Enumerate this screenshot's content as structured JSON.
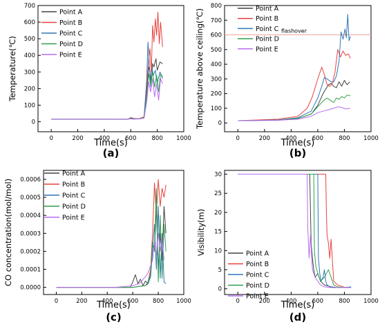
{
  "panels": [
    {
      "letter": "(a)",
      "chart_data": {
        "type": "line",
        "xlabel": "Time(s)",
        "ylabel": "Temperature(℃)",
        "xlim": [
          -100,
          1000
        ],
        "ylim": [
          -60,
          700
        ],
        "xticks": [
          0,
          200,
          400,
          600,
          800,
          1000
        ],
        "yticks": [
          0,
          100,
          200,
          300,
          400,
          500,
          600,
          700
        ],
        "legend_position": "top-left",
        "series": [
          {
            "name": "Point A",
            "color": "#404040",
            "x": [
              0,
              400,
              580,
              600,
              620,
              660,
              700,
              720,
              735,
              745,
              755,
              765,
              775,
              790,
              800,
              820,
              840
            ],
            "y": [
              15,
              15,
              16,
              25,
              20,
              18,
              28,
              180,
              330,
              300,
              240,
              350,
              330,
              380,
              310,
              360,
              350
            ]
          },
          {
            "name": "Point B",
            "color": "#e8413c",
            "x": [
              0,
              400,
              580,
              600,
              620,
              660,
              700,
              720,
              735,
              745,
              755,
              765,
              775,
              785,
              795,
              805,
              815,
              825,
              840
            ],
            "y": [
              15,
              15,
              16,
              24,
              19,
              18,
              30,
              200,
              380,
              440,
              300,
              580,
              480,
              620,
              520,
              660,
              470,
              600,
              450
            ]
          },
          {
            "name": "Point C",
            "color": "#2e75b6",
            "x": [
              0,
              400,
              580,
              600,
              620,
              660,
              700,
              720,
              730,
              740,
              750,
              760,
              770,
              785,
              800,
              820,
              840
            ],
            "y": [
              15,
              15,
              16,
              22,
              18,
              18,
              25,
              250,
              480,
              350,
              210,
              320,
              280,
              310,
              230,
              300,
              260
            ]
          },
          {
            "name": "Point D",
            "color": "#2ea04a",
            "x": [
              0,
              400,
              580,
              600,
              620,
              660,
              700,
              720,
              735,
              750,
              765,
              780,
              795,
              810,
              825,
              840
            ],
            "y": [
              15,
              15,
              16,
              20,
              17,
              17,
              24,
              150,
              290,
              220,
              300,
              210,
              280,
              180,
              290,
              270
            ]
          },
          {
            "name": "Point E",
            "color": "#b76cf0",
            "x": [
              0,
              400,
              580,
              600,
              620,
              660,
              700,
              720,
              735,
              750,
              765,
              780,
              795,
              810,
              825,
              840
            ],
            "y": [
              15,
              15,
              16,
              18,
              16,
              17,
              22,
              120,
              240,
              180,
              260,
              150,
              230,
              130,
              260,
              230
            ]
          }
        ]
      }
    },
    {
      "letter": "(b)",
      "annotation": "flashover",
      "chart_data": {
        "type": "line",
        "xlabel": "Time(s)",
        "ylabel": "Temperature above ceiling(℃)",
        "xlim": [
          -100,
          1000
        ],
        "ylim": [
          -60,
          800
        ],
        "xticks": [
          0,
          200,
          400,
          600,
          800,
          1000
        ],
        "yticks": [
          0,
          100,
          200,
          300,
          400,
          500,
          600,
          700,
          800
        ],
        "legend_position": "top-left",
        "reference_line": {
          "y": 600,
          "color": "#f2a3a0"
        },
        "series": [
          {
            "name": "Point A",
            "color": "#404040",
            "x": [
              0,
              300,
              450,
              550,
              600,
              640,
              680,
              700,
              720,
              740,
              760,
              780,
              800,
              820,
              840
            ],
            "y": [
              15,
              20,
              30,
              60,
              120,
              200,
              260,
              270,
              250,
              240,
              280,
              250,
              290,
              260,
              280
            ]
          },
          {
            "name": "Point B",
            "color": "#e8413c",
            "x": [
              0,
              300,
              450,
              520,
              560,
              600,
              630,
              650,
              670,
              690,
              710,
              730,
              750,
              770,
              790,
              810,
              830,
              845
            ],
            "y": [
              15,
              25,
              45,
              100,
              180,
              300,
              380,
              330,
              260,
              250,
              270,
              350,
              500,
              450,
              490,
              460,
              470,
              440
            ]
          },
          {
            "name": "Point C",
            "color": "#2e75b6",
            "x": [
              0,
              300,
              450,
              550,
              600,
              630,
              650,
              670,
              700,
              720,
              740,
              760,
              775,
              790,
              805,
              815,
              825,
              835,
              845
            ],
            "y": [
              15,
              20,
              35,
              80,
              170,
              250,
              310,
              300,
              280,
              280,
              320,
              420,
              620,
              570,
              640,
              580,
              740,
              560,
              590
            ]
          },
          {
            "name": "Point D",
            "color": "#2ea04a",
            "x": [
              0,
              300,
              450,
              550,
              600,
              640,
              670,
              700,
              720,
              740,
              760,
              780,
              800,
              820,
              845
            ],
            "y": [
              15,
              18,
              30,
              60,
              110,
              150,
              170,
              150,
              140,
              170,
              160,
              180,
              170,
              190,
              185
            ]
          },
          {
            "name": "Point E",
            "color": "#b76cf0",
            "x": [
              0,
              300,
              450,
              550,
              600,
              640,
              680,
              720,
              750,
              780,
              810,
              845
            ],
            "y": [
              15,
              18,
              25,
              45,
              70,
              80,
              90,
              100,
              110,
              105,
              95,
              100
            ]
          }
        ]
      }
    },
    {
      "letter": "(c)",
      "chart_data": {
        "type": "line",
        "xlabel": "Time(s)",
        "ylabel": "CO concentration(mol/mol)",
        "xlim": [
          -100,
          1000
        ],
        "ylim": [
          -4e-05,
          0.00065
        ],
        "xticks": [
          0,
          200,
          400,
          600,
          800,
          1000
        ],
        "yticks": [
          0,
          0.0001,
          0.0002,
          0.0003,
          0.0004,
          0.0005,
          0.0006
        ],
        "ytick_labels": [
          "0.0000",
          "0.0001",
          "0.0002",
          "0.0003",
          "0.0004",
          "0.0005",
          "0.0006"
        ],
        "legend_position": "top-left",
        "series": [
          {
            "name": "Point A",
            "color": "#404040",
            "x": [
              0,
              450,
              580,
              600,
              620,
              640,
              660,
              680,
              700,
              720,
              740,
              755,
              770,
              785,
              800,
              815,
              830,
              845,
              860
            ],
            "y": [
              0,
              0,
              0,
              3e-05,
              7e-05,
              2e-05,
              4.5e-05,
              1e-05,
              3.5e-05,
              2e-05,
              8e-05,
              0.00025,
              0.0002,
              0.00045,
              0.0001,
              0.0003,
              0.00015,
              0.00045,
              0.0003
            ]
          },
          {
            "name": "Point B",
            "color": "#e8413c",
            "x": [
              0,
              450,
              600,
              650,
              700,
              720,
              740,
              755,
              770,
              785,
              800,
              815,
              830,
              845,
              860
            ],
            "y": [
              0,
              0,
              0,
              5e-06,
              1e-05,
              3e-05,
              0.0001,
              0.0003,
              0.00058,
              0.0004,
              0.0006,
              0.00045,
              0.00055,
              0.0005,
              0.00057
            ]
          },
          {
            "name": "Point C",
            "color": "#2e75b6",
            "x": [
              0,
              450,
              600,
              650,
              700,
              720,
              740,
              755,
              770,
              785,
              800,
              815,
              830,
              845,
              860
            ],
            "y": [
              0,
              0,
              0,
              5e-06,
              1e-05,
              2e-05,
              6e-05,
              0.0002,
              0.00035,
              0.0001,
              0.00045,
              5e-05,
              0.0003,
              3e-05,
              2e-05
            ]
          },
          {
            "name": "Point D",
            "color": "#2ea04a",
            "x": [
              0,
              450,
              600,
              650,
              700,
              720,
              740,
              755,
              770,
              785,
              800,
              815,
              830,
              845,
              860
            ],
            "y": [
              0,
              0,
              0,
              5e-06,
              1e-05,
              3e-05,
              8e-05,
              0.00025,
              0.0002,
              0.00055,
              3e-05,
              0.0004,
              5e-05,
              0.00035,
              0.0002
            ]
          },
          {
            "name": "Point E",
            "color": "#b76cf0",
            "x": [
              0,
              450,
              500,
              550,
              600,
              650,
              700,
              720,
              740,
              755,
              770,
              785,
              800,
              815,
              830,
              845
            ],
            "y": [
              0,
              0,
              2e-06,
              5e-06,
              1e-05,
              2e-05,
              6e-05,
              8e-05,
              0.00012,
              0.00015,
              0.00025,
              0.00018,
              0.0003,
              0.0002,
              0.00028,
              0.00015
            ]
          }
        ]
      }
    },
    {
      "letter": "(d)",
      "chart_data": {
        "type": "line",
        "xlabel": "Time(s)",
        "ylabel": "Visibility(m)",
        "xlim": [
          -100,
          1000
        ],
        "ylim": [
          -1.5,
          31
        ],
        "xticks": [
          0,
          200,
          400,
          600,
          800,
          1000
        ],
        "yticks": [
          0,
          5,
          10,
          15,
          20,
          25,
          30
        ],
        "legend_position": "bottom-left",
        "series": [
          {
            "name": "Point A",
            "color": "#404040",
            "x": [
              0,
              540,
              550,
              560,
              570,
              580,
              600,
              620,
              650,
              700,
              750,
              800,
              850
            ],
            "y": [
              30,
              30,
              12,
              8,
              5,
              3,
              4,
              2,
              1,
              0.5,
              0.3,
              0.3,
              0.3
            ]
          },
          {
            "name": "Point B",
            "color": "#e8413c",
            "x": [
              0,
              660,
              665,
              670,
              680,
              690,
              700,
              720,
              750,
              800,
              850
            ],
            "y": [
              30,
              30,
              20,
              14,
              12,
              8,
              13,
              2,
              1,
              0.4,
              0.4
            ]
          },
          {
            "name": "Point C",
            "color": "#2e75b6",
            "x": [
              0,
              600,
              605,
              615,
              625,
              640,
              650,
              660,
              670,
              690,
              720,
              800,
              850
            ],
            "y": [
              30,
              30,
              8,
              4,
              2,
              3,
              5,
              2,
              1,
              0.5,
              0.3,
              0.3,
              0.5
            ]
          },
          {
            "name": "Point D",
            "color": "#2ea04a",
            "x": [
              0,
              570,
              575,
              585,
              600,
              620,
              650,
              680,
              700,
              720,
              750,
              800,
              850
            ],
            "y": [
              30,
              30,
              10,
              6,
              4,
              2,
              3,
              5,
              3,
              1,
              0.5,
              0.3,
              0.3
            ]
          },
          {
            "name": "Point E",
            "color": "#b76cf0",
            "x": [
              0,
              520,
              525,
              535,
              545,
              560,
              580,
              600,
              620,
              650,
              700,
              800,
              850
            ],
            "y": [
              30,
              30,
              16,
              8,
              14,
              5,
              3,
              2,
              1,
              0.5,
              0.3,
              0.3,
              0.3
            ]
          }
        ]
      }
    }
  ]
}
